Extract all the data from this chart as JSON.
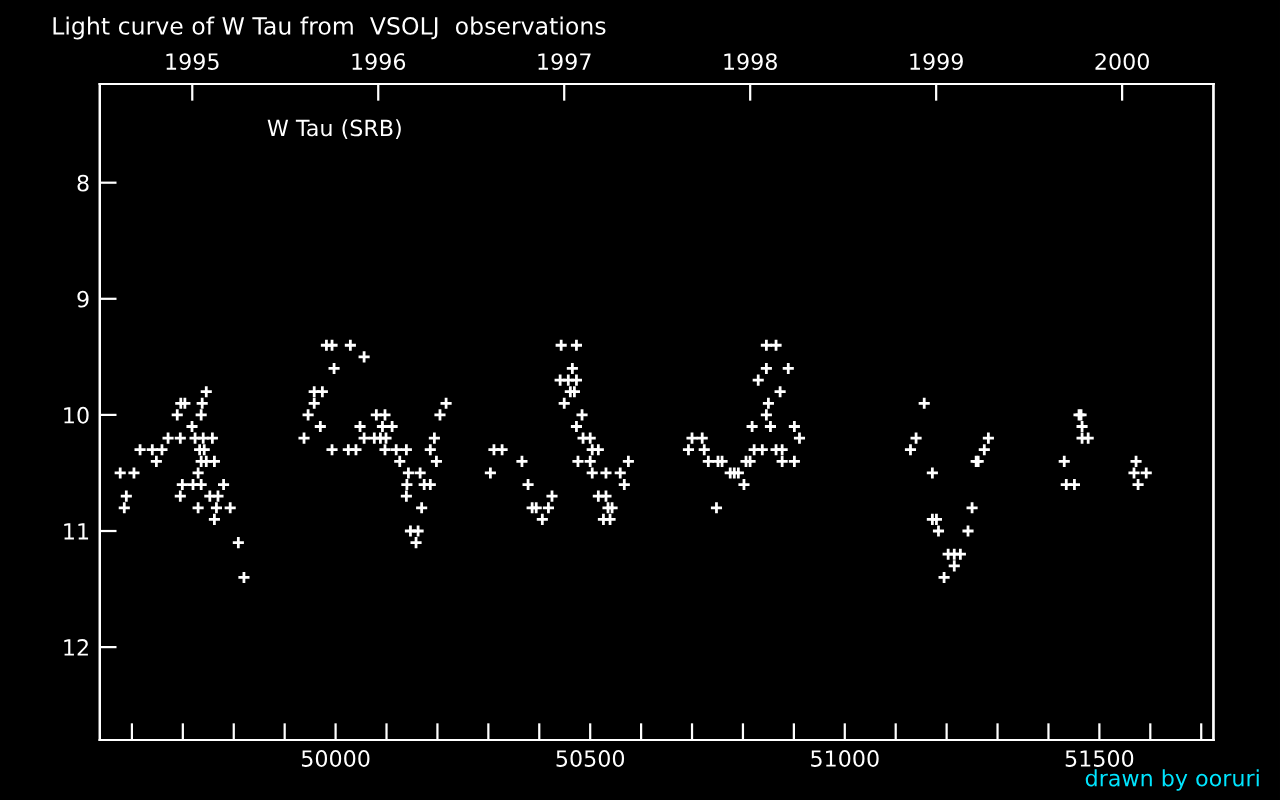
{
  "chart_data": {
    "type": "scatter",
    "title": "Light curve of W Tau from  VSOLJ  observations",
    "annotations": [
      {
        "text": "W Tau (SRB)"
      },
      {
        "text": "drawn by ooruri"
      }
    ],
    "x": [
      49746,
      49696,
      49704,
      49738,
      49689,
      49736,
      49718,
      49671,
      49695,
      49724,
      49740,
      49758,
      49616,
      49640,
      49659,
      49733,
      49742,
      49648,
      49736,
      49746,
      49762,
      49577,
      49604,
      49730,
      49699,
      49720,
      49736,
      49780,
      49589,
      49695,
      49753,
      49769,
      49585,
      49730,
      49766,
      49793,
      49762,
      49809,
      49820,
      49982,
      49993,
      50029,
      50056,
      49997,
      49958,
      49974,
      49958,
      50217,
      49946,
      50080,
      50097,
      50205,
      49970,
      50048,
      50092,
      50111,
      49938,
      50056,
      50076,
      50088,
      50099,
      50194,
      49993,
      50025,
      50040,
      50097,
      50119,
      50139,
      50186,
      50126,
      50198,
      50143,
      50166,
      50140,
      50174,
      50186,
      50139,
      50169,
      50147,
      50162,
      50158,
      50443,
      50473,
      50465,
      50441,
      50457,
      50473,
      50461,
      50469,
      50449,
      50484,
      50473,
      50486,
      50500,
      50311,
      50327,
      50504,
      50516,
      50366,
      50476,
      50500,
      50575,
      50304,
      50504,
      50531,
      50559,
      50378,
      50567,
      50425,
      50516,
      50531,
      50386,
      50394,
      50418,
      50535,
      50543,
      50406,
      50526,
      50539,
      50846,
      50865,
      50846,
      50889,
      50830,
      50873,
      50850,
      50846,
      50818,
      50854,
      50901,
      50700,
      50720,
      50911,
      50693,
      50724,
      50822,
      50838,
      50865,
      50877,
      50732,
      50751,
      50759,
      50806,
      50814,
      50877,
      50901,
      50775,
      50783,
      50791,
      50802,
      50748,
      51156,
      51140,
      51282,
      51129,
      51274,
      51258,
      51262,
      51172,
      51250,
      51172,
      51180,
      51184,
      51242,
      51203,
      51215,
      51227,
      51215,
      51195,
      51460,
      51464,
      51466,
      51466,
      51478,
      51431,
      51435,
      51451,
      51572,
      51568,
      51592,
      51576
    ],
    "series": [
      {
        "color": "#ffffff",
        "values": [
          9.8,
          9.9,
          9.9,
          9.9,
          10.0,
          10.0,
          10.1,
          10.2,
          10.2,
          10.2,
          10.2,
          10.2,
          10.3,
          10.3,
          10.3,
          10.3,
          10.3,
          10.4,
          10.4,
          10.4,
          10.4,
          10.5,
          10.5,
          10.5,
          10.6,
          10.6,
          10.6,
          10.6,
          10.7,
          10.7,
          10.7,
          10.7,
          10.8,
          10.8,
          10.8,
          10.8,
          10.9,
          11.1,
          11.4,
          9.4,
          9.4,
          9.4,
          9.5,
          9.6,
          9.8,
          9.8,
          9.9,
          9.9,
          10.0,
          10.0,
          10.0,
          10.0,
          10.1,
          10.1,
          10.1,
          10.1,
          10.2,
          10.2,
          10.2,
          10.2,
          10.2,
          10.2,
          10.3,
          10.3,
          10.3,
          10.3,
          10.3,
          10.3,
          10.3,
          10.4,
          10.4,
          10.5,
          10.5,
          10.6,
          10.6,
          10.6,
          10.7,
          10.8,
          11.0,
          11.0,
          11.1,
          9.4,
          9.4,
          9.6,
          9.7,
          9.7,
          9.7,
          9.8,
          9.8,
          9.9,
          10.0,
          10.1,
          10.2,
          10.2,
          10.3,
          10.3,
          10.3,
          10.3,
          10.4,
          10.4,
          10.4,
          10.4,
          10.5,
          10.5,
          10.5,
          10.5,
          10.6,
          10.6,
          10.7,
          10.7,
          10.7,
          10.8,
          10.8,
          10.8,
          10.8,
          10.8,
          10.9,
          10.9,
          10.9,
          9.4,
          9.4,
          9.6,
          9.6,
          9.7,
          9.8,
          9.9,
          10.0,
          10.1,
          10.1,
          10.1,
          10.2,
          10.2,
          10.2,
          10.3,
          10.3,
          10.3,
          10.3,
          10.3,
          10.3,
          10.4,
          10.4,
          10.4,
          10.4,
          10.4,
          10.4,
          10.4,
          10.5,
          10.5,
          10.5,
          10.6,
          10.8,
          9.9,
          10.2,
          10.2,
          10.3,
          10.3,
          10.4,
          10.4,
          10.5,
          10.8,
          10.9,
          10.9,
          11.0,
          11.0,
          11.2,
          11.2,
          11.2,
          11.3,
          11.4,
          10.0,
          10.0,
          10.1,
          10.2,
          10.2,
          10.4,
          10.6,
          10.6,
          10.4,
          10.5,
          10.5,
          10.6
        ]
      }
    ],
    "marker": "cross",
    "xlim": [
      49537,
      51724
    ],
    "ylim": [
      12.8,
      7.15
    ],
    "xticks": [
      {
        "value": 49600,
        "label": null
      },
      {
        "value": 49700,
        "label": null
      },
      {
        "value": 49800,
        "label": null
      },
      {
        "value": 49900,
        "label": null
      },
      50000,
      {
        "value": 50100,
        "label": null
      },
      {
        "value": 50200,
        "label": null
      },
      {
        "value": 50300,
        "label": null
      },
      {
        "value": 50400,
        "label": null
      },
      50500,
      {
        "value": 50600,
        "label": null
      },
      {
        "value": 50700,
        "label": null
      },
      {
        "value": 50800,
        "label": null
      },
      {
        "value": 50900,
        "label": null
      },
      51000,
      {
        "value": 51100,
        "label": null
      },
      {
        "value": 51200,
        "label": null
      },
      {
        "value": 51300,
        "label": null
      },
      {
        "value": 51400,
        "label": null
      },
      51500,
      {
        "value": 51600,
        "label": null
      },
      {
        "value": 51700,
        "label": null
      }
    ],
    "yticks": [
      8,
      9,
      10,
      11,
      12
    ],
    "x2lim": [
      1994.503,
      2000.491
    ],
    "x2ticks": [
      1995,
      1996,
      1997,
      1998,
      1999,
      2000
    ],
    "grid": false,
    "legend": false
  }
}
